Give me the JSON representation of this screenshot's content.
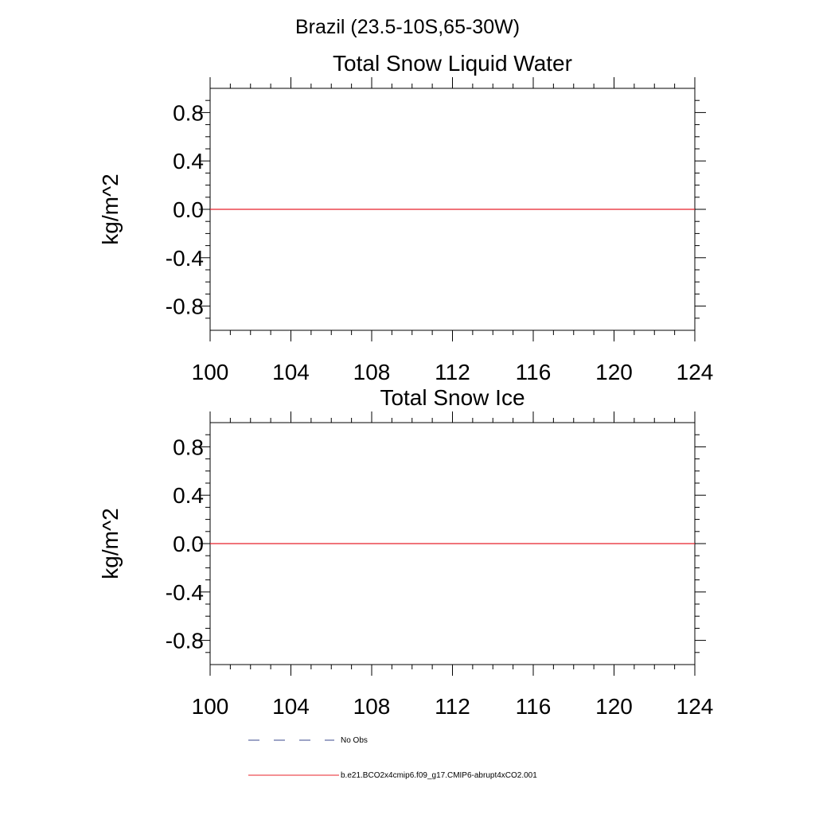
{
  "figure_title": "Brazil (23.5-10S,65-30W)",
  "chart_data": [
    {
      "type": "line",
      "title": "Total Snow Liquid Water",
      "xlabel": "",
      "ylabel": "kg/m^2",
      "xlim": [
        100,
        124
      ],
      "ylim": [
        -1,
        1
      ],
      "x_ticks": [
        100,
        104,
        108,
        112,
        116,
        120,
        124
      ],
      "x_tick_labels": [
        "100",
        "104",
        "108",
        "112",
        "116",
        "120",
        "124"
      ],
      "y_ticks": [
        0.8,
        0.4,
        0.0,
        -0.4,
        -0.8
      ],
      "y_tick_labels": [
        "0.8",
        "0.4",
        "0.0",
        "-0.4",
        "-0.8"
      ],
      "grid": false,
      "series": [
        {
          "name": "b.e21.BCO2x4cmip6.f09_g17.CMIP6-abrupt4xCO2.001",
          "color": "#e8202a",
          "x": [
            100,
            124
          ],
          "y": [
            0,
            0
          ]
        }
      ]
    },
    {
      "type": "line",
      "title": "Total Snow Ice",
      "xlabel": "",
      "ylabel": "kg/m^2",
      "xlim": [
        100,
        124
      ],
      "ylim": [
        -1,
        1
      ],
      "x_ticks": [
        100,
        104,
        108,
        112,
        116,
        120,
        124
      ],
      "x_tick_labels": [
        "100",
        "104",
        "108",
        "112",
        "116",
        "120",
        "124"
      ],
      "y_ticks": [
        0.8,
        0.4,
        0.0,
        -0.4,
        -0.8
      ],
      "y_tick_labels": [
        "0.8",
        "0.4",
        "0.0",
        "-0.4",
        "-0.8"
      ],
      "grid": false,
      "series": [
        {
          "name": "b.e21.BCO2x4cmip6.f09_g17.CMIP6-abrupt4xCO2.001",
          "color": "#e8202a",
          "x": [
            100,
            124
          ],
          "y": [
            0,
            0
          ]
        }
      ]
    }
  ],
  "legend": {
    "placement": "bottom",
    "items": [
      {
        "label": "No Obs",
        "style": "dashed",
        "color": "#3b4a8c"
      },
      {
        "label": "b.e21.BCO2x4cmip6.f09_g17.CMIP6-abrupt4xCO2.001",
        "style": "solid",
        "color": "#e8202a"
      }
    ]
  }
}
